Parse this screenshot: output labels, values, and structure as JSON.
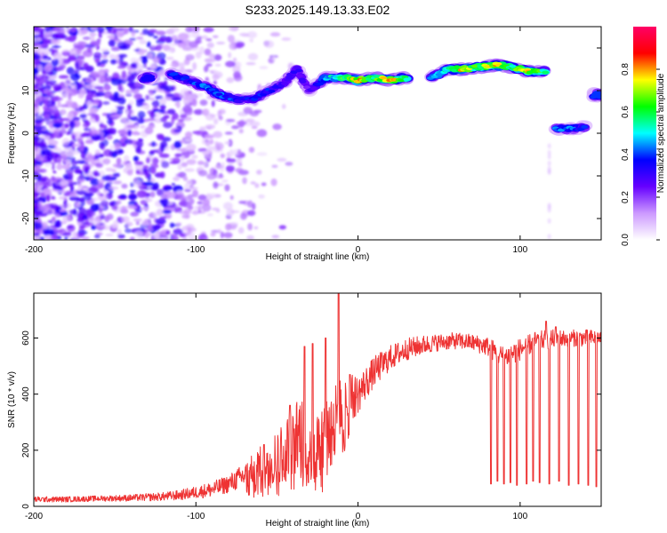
{
  "title": "S233.2025.149.13.33.E02",
  "chart_data": [
    {
      "type": "heatmap",
      "xlabel": "Height of straight line (km)",
      "ylabel": "Frequency (Hz)",
      "xlim": [
        -200,
        150
      ],
      "ylim": [
        -25,
        25
      ],
      "xticks": [
        -200,
        -100,
        0,
        100
      ],
      "yticks": [
        -20,
        -10,
        0,
        10,
        20
      ],
      "colorbar": {
        "label": "Normalized spectral amplitude",
        "range": [
          0,
          1
        ],
        "ticks": [
          "0.0",
          "0.2",
          "0.4",
          "0.6",
          "0.8"
        ],
        "colormap": [
          "#ffffff",
          "#cc99ff",
          "#6600ff",
          "#0000ff",
          "#00ffff",
          "#00ff00",
          "#ffff00",
          "#ff0000",
          "#ff0066"
        ]
      },
      "ridge": [
        {
          "x": -130,
          "y": 13,
          "amp": 0.35
        },
        {
          "x": -115,
          "y": 14,
          "amp": 0.4
        },
        {
          "x": -105,
          "y": 12.5,
          "amp": 0.35
        },
        {
          "x": -95,
          "y": 11,
          "amp": 0.4
        },
        {
          "x": -85,
          "y": 9,
          "amp": 0.4
        },
        {
          "x": -75,
          "y": 8,
          "amp": 0.35
        },
        {
          "x": -65,
          "y": 8,
          "amp": 0.35
        },
        {
          "x": -55,
          "y": 10,
          "amp": 0.35
        },
        {
          "x": -45,
          "y": 12,
          "amp": 0.3
        },
        {
          "x": -38,
          "y": 15,
          "amp": 0.3
        },
        {
          "x": -30,
          "y": 10,
          "amp": 0.25
        },
        {
          "x": -20,
          "y": 13,
          "amp": 0.45
        },
        {
          "x": -10,
          "y": 13,
          "amp": 0.6
        },
        {
          "x": 0,
          "y": 12.5,
          "amp": 0.75
        },
        {
          "x": 10,
          "y": 13,
          "amp": 0.6
        },
        {
          "x": 20,
          "y": 12.5,
          "amp": 0.75
        },
        {
          "x": 30,
          "y": 13,
          "amp": 0.6
        },
        {
          "x": 45,
          "y": 13,
          "amp": 0.45
        },
        {
          "x": 55,
          "y": 15,
          "amp": 0.55
        },
        {
          "x": 65,
          "y": 15,
          "amp": 0.75
        },
        {
          "x": 75,
          "y": 15.5,
          "amp": 0.6
        },
        {
          "x": 85,
          "y": 16,
          "amp": 0.75
        },
        {
          "x": 95,
          "y": 15.5,
          "amp": 0.6
        },
        {
          "x": 105,
          "y": 14.5,
          "amp": 0.7
        },
        {
          "x": 115,
          "y": 14.5,
          "amp": 0.55
        },
        {
          "x": 122,
          "y": 1,
          "amp": 0.45
        },
        {
          "x": 132,
          "y": 1,
          "amp": 0.4
        },
        {
          "x": 140,
          "y": 1.5,
          "amp": 0.35
        },
        {
          "x": 148,
          "y": 9,
          "amp": 0.4
        }
      ]
    },
    {
      "type": "line",
      "xlabel": "Height of straight line (km)",
      "ylabel": "SNR (10 * v/v)",
      "xlim": [
        -200,
        150
      ],
      "ylim": [
        0,
        760
      ],
      "xticks": [
        -200,
        -100,
        0,
        100
      ],
      "yticks": [
        0,
        200,
        400,
        600
      ],
      "color": "#ee3333",
      "series": [
        {
          "x": [
            -200,
            -180,
            -160,
            -140,
            -120,
            -110,
            -100,
            -90,
            -80,
            -70,
            -65,
            -60,
            -55,
            -50,
            -45,
            -40,
            -35,
            -30,
            -25,
            -20,
            -15,
            -10,
            -5,
            0,
            5,
            10,
            20,
            30,
            40,
            50,
            60,
            70,
            80,
            90,
            100,
            110,
            120,
            130,
            140,
            150
          ],
          "y": [
            25,
            25,
            28,
            30,
            35,
            40,
            50,
            60,
            80,
            110,
            130,
            150,
            170,
            190,
            210,
            250,
            280,
            180,
            230,
            280,
            320,
            360,
            380,
            400,
            440,
            480,
            530,
            560,
            575,
            585,
            590,
            585,
            570,
            530,
            560,
            590,
            595,
            600,
            600,
            600
          ],
          "noise": [
            10,
            10,
            10,
            12,
            15,
            18,
            22,
            28,
            32,
            45,
            55,
            65,
            75,
            85,
            95,
            110,
            120,
            100,
            110,
            120,
            110,
            100,
            90,
            70,
            60,
            55,
            45,
            40,
            35,
            30,
            30,
            30,
            35,
            40,
            40,
            35,
            35,
            30,
            30,
            30
          ],
          "spikes": [
            [
              -58,
              220
            ],
            [
              -42,
              360
            ],
            [
              -33,
              570
            ],
            [
              -28,
              580
            ],
            [
              -20,
              600
            ],
            [
              -12,
              760
            ],
            [
              -5,
              470
            ],
            [
              82,
              80
            ],
            [
              86,
              90
            ],
            [
              90,
              80
            ],
            [
              94,
              85
            ],
            [
              98,
              75
            ],
            [
              104,
              80
            ],
            [
              108,
              90
            ],
            [
              112,
              85
            ],
            [
              118,
              80
            ],
            [
              124,
              90
            ],
            [
              130,
              75
            ],
            [
              136,
              80
            ],
            [
              142,
              75
            ],
            [
              147,
              70
            ],
            [
              116,
              660
            ],
            [
              122,
              640
            ]
          ]
        }
      ]
    }
  ]
}
